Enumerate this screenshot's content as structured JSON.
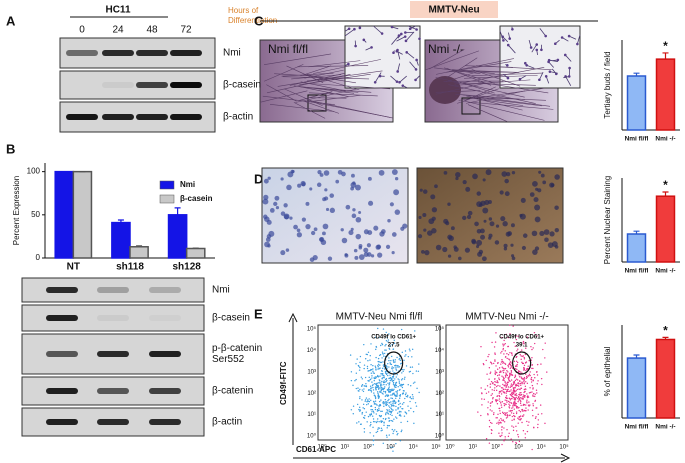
{
  "panels": {
    "A": {
      "label": "A",
      "title": "HC11",
      "times": [
        "0",
        "24",
        "48",
        "72"
      ],
      "time_caption": [
        "Hours of",
        "Differentiation"
      ],
      "rows": [
        [
          "Nmi"
        ],
        [
          "β-casein"
        ],
        [
          "β-actin"
        ]
      ]
    },
    "B": {
      "label": "B",
      "rows": [
        [
          "Nmi"
        ],
        [
          "β-casein"
        ],
        [
          "p-β-catenin",
          "Ser552"
        ],
        [
          "β-catenin"
        ],
        [
          "β-actin"
        ]
      ]
    },
    "C": {
      "label": "C",
      "header": "MMTV-Neu",
      "image_labels": [
        "Nmi fl/fl",
        "Nmi -/-"
      ]
    },
    "D": {
      "label": "D"
    },
    "E": {
      "label": "E",
      "plot_titles": [
        "MMTV-Neu Nmi fl/fl",
        "MMTV-Neu Nmi -/-"
      ],
      "gate_name": "CD49f lo CD61+",
      "gate_values": [
        "27.5",
        "39.1"
      ],
      "ylabel": "CD49f-FITC",
      "xlabel": "CD61-APC",
      "xticks": [
        "10⁰",
        "10¹",
        "10²",
        "10³",
        "10⁴",
        "10⁵"
      ],
      "yticks": [
        "10⁰",
        "10¹",
        "10²",
        "10³",
        "10⁴",
        "10⁵"
      ]
    }
  },
  "chart_data": [
    {
      "type": "bar",
      "ylabel": "Percent Expression",
      "categories": [
        "NT",
        "sh118",
        "sh128"
      ],
      "series": [
        {
          "name": "Nmi",
          "color": "#1414e6",
          "values": [
            100,
            41,
            50
          ],
          "errors": [
            0,
            3,
            8
          ]
        },
        {
          "name": "β-casein",
          "color": "#c8c8c8",
          "values": [
            100,
            13,
            11
          ],
          "errors": [
            0,
            1,
            0.5
          ]
        }
      ],
      "ylim": [
        0,
        110
      ],
      "yticks": [
        0,
        50,
        100
      ]
    },
    {
      "type": "bar",
      "ylabel": "Tertiary buds / field",
      "categories": [
        "Nmi fl/fl",
        "Nmi -/-"
      ],
      "values": [
        480,
        630
      ],
      "errors": [
        25,
        55
      ],
      "colors": [
        "#8fb8f5",
        "#f03c3c"
      ],
      "ylim": [
        0,
        800
      ],
      "annotation": "*"
    },
    {
      "type": "bar",
      "ylabel": "Percent Nuclear Staining",
      "categories": [
        "Nmi fl/fl",
        "Nmi -/-"
      ],
      "values": [
        20,
        47
      ],
      "errors": [
        2,
        3
      ],
      "colors": [
        "#8fb8f5",
        "#f03c3c"
      ],
      "ylim": [
        0,
        60
      ],
      "annotation": "*"
    },
    {
      "type": "bar",
      "ylabel": "% of epithelial",
      "categories": [
        "Nmi fl/fl",
        "Nmi -/-"
      ],
      "values": [
        29,
        38
      ],
      "errors": [
        1.5,
        1
      ],
      "colors": [
        "#8fb8f5",
        "#f03c3c"
      ],
      "ylim": [
        0,
        45
      ],
      "annotation": "*"
    }
  ]
}
